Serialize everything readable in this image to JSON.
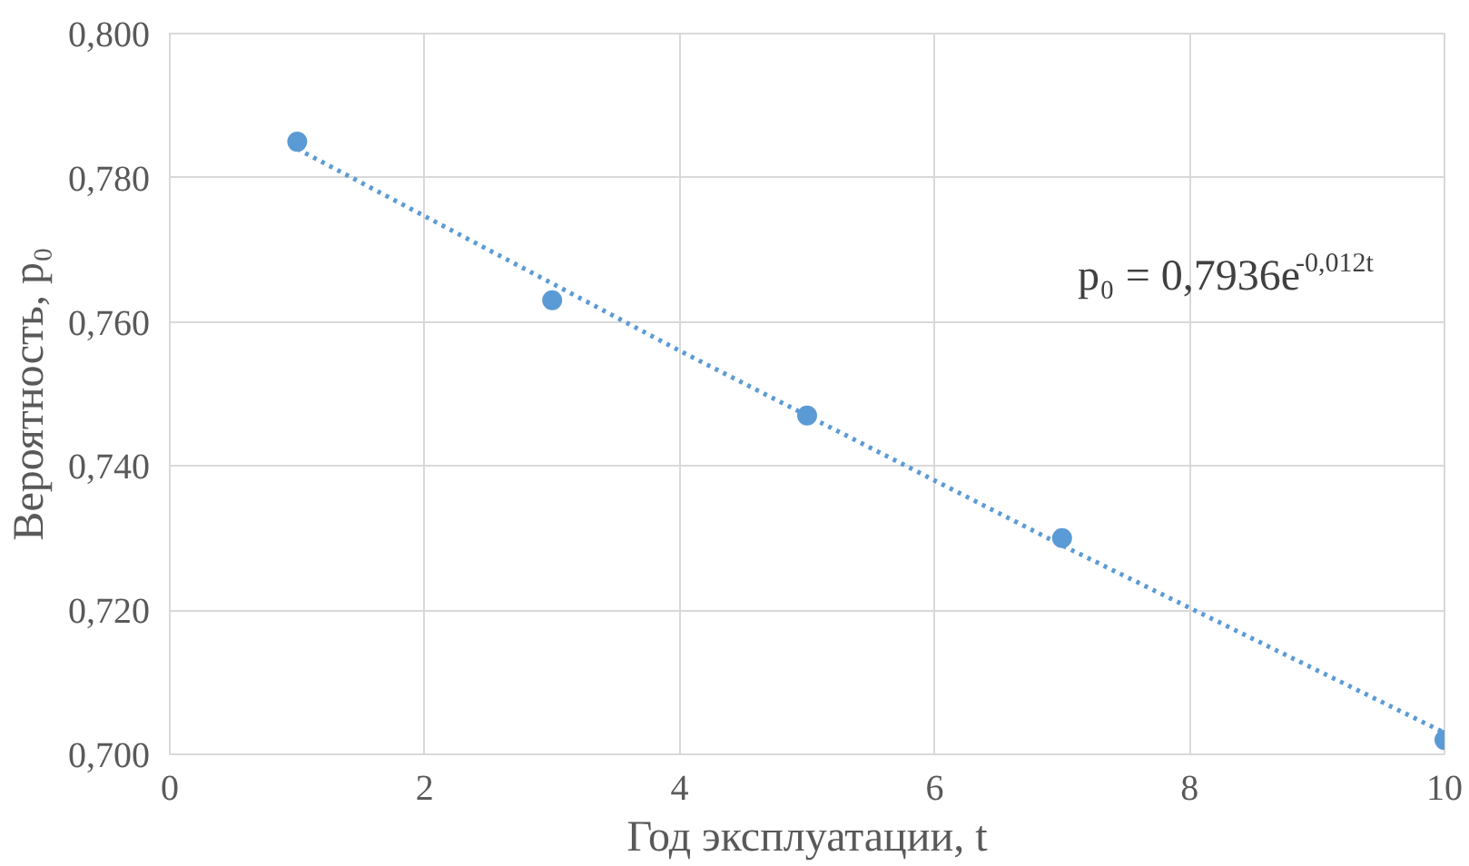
{
  "chart_data": {
    "type": "scatter",
    "xlabel": "Год эксплуатации, t",
    "ylabel": "Вероятность, p₀",
    "xlim": [
      0,
      10
    ],
    "xticks": [
      0,
      2,
      4,
      6,
      8,
      10
    ],
    "ylim": [
      0.7,
      0.8
    ],
    "yticks": [
      {
        "value": 0.7,
        "label": "0,700"
      },
      {
        "value": 0.72,
        "label": "0,720"
      },
      {
        "value": 0.74,
        "label": "0,740"
      },
      {
        "value": 0.76,
        "label": "0,760"
      },
      {
        "value": 0.78,
        "label": "0,780"
      },
      {
        "value": 0.8,
        "label": "0,800"
      }
    ],
    "grid": true,
    "series": [
      {
        "marker": "circle",
        "color": "#5b9bd5",
        "x": [
          1,
          3,
          5,
          7,
          10
        ],
        "values": [
          0.785,
          0.763,
          0.747,
          0.73,
          0.702
        ]
      },
      {
        "type": "line",
        "color": "#5b9bd5",
        "line_style": "dotted",
        "x": [
          1,
          4,
          7,
          10
        ],
        "values": [
          0.784,
          0.756,
          0.729,
          0.703
        ]
      }
    ],
    "annotations": [
      "p₀ = 0,7936e$^{-0,012t}$"
    ]
  }
}
